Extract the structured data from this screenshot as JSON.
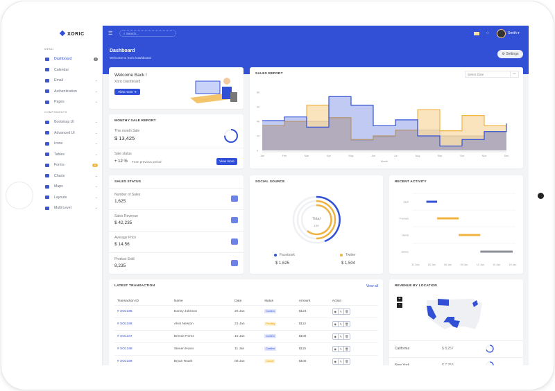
{
  "brand": "XORIC",
  "sidebar": {
    "menu_title": "MENU",
    "components_title": "COMPONENTS",
    "items": [
      {
        "label": "Dashboard",
        "icon": "dashboard-icon",
        "badge": "3",
        "active": true
      },
      {
        "label": "Calendar",
        "icon": "calendar-icon"
      },
      {
        "label": "Email",
        "icon": "email-icon",
        "chevron": true
      },
      {
        "label": "Authentication",
        "icon": "auth-icon",
        "chevron": true
      },
      {
        "label": "Pages",
        "icon": "pages-icon",
        "chevron": true
      }
    ],
    "components": [
      {
        "label": "Bootstrap UI",
        "icon": "bootstrap-icon",
        "chevron": true
      },
      {
        "label": "Advanced UI",
        "icon": "advanced-icon",
        "chevron": true
      },
      {
        "label": "Icons",
        "icon": "icons-icon",
        "chevron": true
      },
      {
        "label": "Tables",
        "icon": "tables-icon",
        "chevron": true
      },
      {
        "label": "Forms",
        "icon": "forms-icon",
        "badge": "11"
      },
      {
        "label": "Charts",
        "icon": "charts-icon",
        "chevron": true
      },
      {
        "label": "Maps",
        "icon": "maps-icon",
        "chevron": true
      },
      {
        "label": "Layouts",
        "icon": "layouts-icon",
        "chevron": true
      },
      {
        "label": "Multi Level",
        "icon": "multilevel-icon",
        "chevron": true
      }
    ]
  },
  "topbar": {
    "search_placeholder": "Search...",
    "user": "Smith ▾"
  },
  "header": {
    "title": "Dashboard",
    "subtitle": "Welcome to Xoric Dashboard",
    "settings": "⚙ Settings"
  },
  "welcome": {
    "title": "Welcome Back !",
    "subtitle": "Xoric Dashboard",
    "button": "View more ➜"
  },
  "monthly": {
    "title": "MONTHY SALE REPORT",
    "label": "This month Sale",
    "value": "$ 13,425",
    "status_label": "Sale status",
    "change": "+ 12 %",
    "change_note": "From previous period",
    "button": "View more",
    "progress": 0.75
  },
  "sales_report": {
    "title": "SALES REPORT",
    "date_placeholder": "Select Date"
  },
  "chart_data": {
    "type": "area",
    "title": "SALES REPORT",
    "xlabel": "Month",
    "ylabel": "",
    "categories": [
      "Jan",
      "Feb",
      "Mar",
      "Apr",
      "May",
      "Jun",
      "Jul",
      "Aug",
      "Sep",
      "Oct",
      "Nov",
      "Dec"
    ],
    "ylim": [
      0,
      80
    ],
    "yticks": [
      0,
      20,
      40,
      60,
      80
    ],
    "step": true,
    "grid": false,
    "series": [
      {
        "values": [
          34,
          40,
          40,
          45,
          14,
          19,
          28,
          28,
          20,
          20,
          25,
          28
        ],
        "color": "#b8bcc8"
      },
      {
        "values": [
          34,
          40,
          62,
          45,
          15,
          20,
          28,
          56,
          27,
          48,
          34,
          34
        ],
        "color": "#f0b342"
      },
      {
        "values": [
          41,
          46,
          32,
          74,
          62,
          34,
          42,
          20,
          6,
          15,
          26,
          37
        ],
        "color": "#3150d6"
      }
    ]
  },
  "sales_status": {
    "title": "SALES STATUS",
    "items": [
      {
        "label": "Number of Sales",
        "value": "1,625",
        "icon": "layers-icon"
      },
      {
        "label": "Sales Revenue",
        "value": "$ 42,235",
        "icon": "bar-chart-icon"
      },
      {
        "label": "Average Price",
        "value": "$ 14.56",
        "icon": "ticket-icon"
      },
      {
        "label": "Product Sold",
        "value": "8,235",
        "icon": "box-icon"
      }
    ]
  },
  "social": {
    "title": "SOCIAL SOURCE",
    "total_label": "Total",
    "total": "166",
    "sources": [
      {
        "name": "Facebook",
        "value": "$ 1,625",
        "color": "#3150d6"
      },
      {
        "name": "Twitter",
        "value": "$ 1,504",
        "color": "#f0b342"
      }
    ]
  },
  "activity": {
    "title": "RECENT ACTIVITY",
    "people": [
      "Jack",
      "Thomas",
      "David",
      "James"
    ],
    "ticks": [
      "31 Dec",
      "03 Jan",
      "06 Jan",
      "09 Jan",
      "12 Jan",
      "15 Jan",
      "18 Jan"
    ],
    "bars": [
      {
        "start": 2,
        "end": 4,
        "color": "#3150d6"
      },
      {
        "start": 4,
        "end": 8,
        "color": "#f0b342"
      },
      {
        "start": 8,
        "end": 12,
        "color": "#f0b342"
      },
      {
        "start": 12,
        "end": 18,
        "color": "#8a8f98"
      }
    ]
  },
  "transactions": {
    "title": "LATEST TRANSACTION",
    "view_all": "View all",
    "headers": [
      "Transaction ID",
      "Name",
      "Date",
      "status",
      "Amount",
      "Action"
    ],
    "rows": [
      {
        "id": "# XO1345",
        "name": "Danny Johnson",
        "date": "26 Jan",
        "status": "Confirm",
        "amount": "$124"
      },
      {
        "id": "# XO1346",
        "name": "Alvin Newton",
        "date": "21 Jan",
        "status": "Pending",
        "amount": "$112"
      },
      {
        "id": "# XO1347",
        "name": "Bennie Perez",
        "date": "15 Jan",
        "status": "Confirm",
        "amount": "$106"
      },
      {
        "id": "# XO1348",
        "name": "Steven Kwon",
        "date": "11 Jan",
        "status": "Confirm",
        "amount": "$115"
      },
      {
        "id": "# XO1349",
        "name": "Bryan Roark",
        "date": "08 Jan",
        "status": "Cancel",
        "amount": "$105"
      }
    ]
  },
  "revenue": {
    "title": "REVENUE BY LOCATION",
    "zoom_in": "+",
    "zoom_out": "-",
    "locations": [
      {
        "name": "California",
        "value": "$ 8,257",
        "progress": 0.7
      },
      {
        "name": "New York",
        "value": "$ 7,253",
        "progress": 0.6
      }
    ]
  }
}
